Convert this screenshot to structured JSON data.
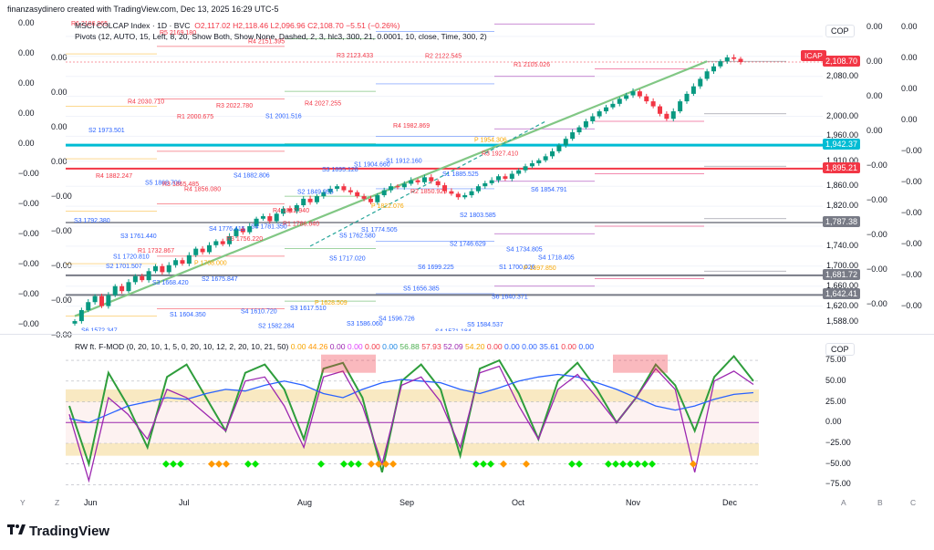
{
  "credit": "finanzasydinero created with TradingView.com, Dec 13, 2025 16:29 UTC-5",
  "legend": {
    "symbol": "MSCI COLCAP Index · 1D · BVC",
    "ohlc": "O2,117.02  H2,118.46  L2,096.96  C2,108.70  −5.51 (−0.26%)",
    "pivots": "Pivots (12, AUTO, 15, Left, 8, 20, Show Both, Show None, Dashed, 2, 3, hlc3, 300, 21, 0.0001, 10, close, Time, 300, 2)",
    "osc": "RW ft. F-MOD (0, 20, 10, 1, 5, 0, 20, 10, 12, 2, 20, 10, 21, 50)",
    "osc_values": [
      {
        "v": "0.00",
        "c": "#f7a600"
      },
      {
        "v": "44.26",
        "c": "#ff9800"
      },
      {
        "v": "0.00",
        "c": "#9c27b0"
      },
      {
        "v": "0.00",
        "c": "#e040fb"
      },
      {
        "v": "0.00",
        "c": "#f23645"
      },
      {
        "v": "0.00",
        "c": "#1e88e5"
      },
      {
        "v": "56.88",
        "c": "#4caf50"
      },
      {
        "v": "57.93",
        "c": "#f23645"
      },
      {
        "v": "52.09",
        "c": "#9c27b0"
      },
      {
        "v": "54.20",
        "c": "#f7a600"
      },
      {
        "v": "0.00",
        "c": "#f23645"
      },
      {
        "v": "0.00",
        "c": "#2962ff"
      },
      {
        "v": "0.00",
        "c": "#2962ff"
      },
      {
        "v": "35.61",
        "c": "#2962ff"
      },
      {
        "v": "0.00",
        "c": "#f23645"
      },
      {
        "v": "0.00",
        "c": "#2962ff"
      }
    ]
  },
  "currency": "COP",
  "currency2": "COP",
  "icap_label": "ICAP",
  "price_axis": [
    "2,080.00",
    "2,000.00",
    "1,960.00",
    "1,910.00",
    "1,860.00",
    "1,820.00",
    "1,740.00",
    "1,700.00",
    "1,660.00",
    "1,620.00",
    "1,588.00"
  ],
  "price_tags": [
    {
      "text": "2,108.70",
      "color": "#f23645"
    },
    {
      "text": "1,942.37",
      "color": "#00bcd4"
    },
    {
      "text": "1,895.21",
      "color": "#f23645"
    },
    {
      "text": "1,787.38",
      "color": "#787b86"
    },
    {
      "text": "1,681.72",
      "color": "#787b86"
    },
    {
      "text": "1,642.41",
      "color": "#787b86"
    }
  ],
  "zero_axis_left": [
    "0.00",
    "0.00",
    "0.00",
    "0.00",
    "0.00",
    "−0.00",
    "−0.00",
    "−0.00",
    "−0.00",
    "−0.00",
    "−0.00"
  ],
  "zero_axis_left2": [
    "0.00",
    "0.00",
    "0.00",
    "0.00",
    "−0.00",
    "−0.00",
    "−0.00",
    "−0.00",
    "−0.00"
  ],
  "zero_axis_right": [
    "0.00",
    "0.00",
    "0.00",
    "0.00",
    "−0.00",
    "−0.00",
    "−0.00",
    "−0.00",
    "−0.00",
    "−0.00"
  ],
  "zero_axis_right2": [
    "0.00",
    "0.00",
    "0.00",
    "0.00",
    "−0.00",
    "−0.00",
    "−0.00",
    "−0.00",
    "−0.00"
  ],
  "osc_axis": [
    "75.00",
    "50.00",
    "25.00",
    "0.00",
    "−25.00",
    "−50.00",
    "−75.00"
  ],
  "time_axis": [
    "Jun",
    "Jul",
    "Aug",
    "Sep",
    "Oct",
    "Nov",
    "Dec"
  ],
  "axis_letters": [
    "Y",
    "Z",
    "A",
    "B",
    "C"
  ],
  "brand": "TradingView",
  "pivot_labels": [
    {
      "t": "R6",
      "v": "2186.965"
    },
    {
      "t": "R5",
      "v": "2169.180"
    },
    {
      "t": "R4",
      "v": "2151.395"
    },
    {
      "t": "R3",
      "v": "2123.433"
    },
    {
      "t": "R2",
      "v": "2122.545"
    },
    {
      "t": "R1",
      "v": "2105.026"
    },
    {
      "t": "R4",
      "v": "2030.710"
    },
    {
      "t": "R3",
      "v": "2022.780"
    },
    {
      "t": "R4",
      "v": "2027.255"
    },
    {
      "t": "R4",
      "v": "1982.869"
    },
    {
      "t": "R3",
      "v": "1927.410"
    },
    {
      "t": "R4",
      "v": "1882.247"
    },
    {
      "t": "R4",
      "v": "1856.080"
    },
    {
      "t": "R4",
      "v": "1812.940"
    },
    {
      "t": "S1",
      "v": "1774.505"
    },
    {
      "t": "S2",
      "v": "1746.629"
    },
    {
      "t": "S4",
      "v": "1718.405"
    },
    {
      "t": "S3",
      "v": "1668.420"
    },
    {
      "t": "S4",
      "v": "1610.720"
    },
    {
      "t": "S5",
      "v": "1717.020"
    },
    {
      "t": "S6",
      "v": "1699.225"
    },
    {
      "t": "S4",
      "v": "1734.805"
    },
    {
      "t": "S3",
      "v": "1761.440"
    },
    {
      "t": "S4",
      "v": "1776.415"
    },
    {
      "t": "S2",
      "v": "1849.955"
    },
    {
      "t": "S1",
      "v": "1912.160"
    },
    {
      "t": "P",
      "v": "1954.306"
    },
    {
      "t": "S2",
      "v": "1973.501"
    },
    {
      "t": "R1",
      "v": "2000.675"
    },
    {
      "t": "S1",
      "v": "2001.516"
    },
    {
      "t": "S1",
      "v": "1904.660"
    },
    {
      "t": "S1",
      "v": "1885.525"
    },
    {
      "t": "S6",
      "v": "1854.791"
    },
    {
      "t": "S5",
      "v": "1868.706"
    },
    {
      "t": "S4",
      "v": "1882.806"
    },
    {
      "t": "S3",
      "v": "1895.128"
    },
    {
      "t": "R2",
      "v": "1850.925"
    },
    {
      "t": "S1",
      "v": "1700.026"
    },
    {
      "t": "S1",
      "v": "1720.810"
    },
    {
      "t": "S2",
      "v": "1675.847"
    },
    {
      "t": "S3",
      "v": "1617.510"
    },
    {
      "t": "S4",
      "v": "1596.726"
    },
    {
      "t": "S5",
      "v": "1584.537"
    },
    {
      "t": "S6",
      "v": "1572.347"
    },
    {
      "t": "S1",
      "v": "1604.350"
    },
    {
      "t": "S2",
      "v": "1582.284"
    },
    {
      "t": "S3",
      "v": "1586.060"
    },
    {
      "t": "S4",
      "v": "1571.184"
    },
    {
      "t": "P",
      "v": "1697.850"
    },
    {
      "t": "R1",
      "v": "1732.867"
    },
    {
      "t": "R3",
      "v": "1756.220"
    },
    {
      "t": "P",
      "v": "1628.509"
    },
    {
      "t": "S5",
      "v": "1656.385"
    },
    {
      "t": "S6",
      "v": "1640.371"
    },
    {
      "t": "S2",
      "v": "1701.507"
    },
    {
      "t": "P",
      "v": "1708.000"
    },
    {
      "t": "R1",
      "v": "1786.640"
    },
    {
      "t": "P",
      "v": "1822.076"
    },
    {
      "t": "S2",
      "v": "1803.585"
    },
    {
      "t": "S3",
      "v": "1792.380"
    },
    {
      "t": "R3",
      "v": "1865.485"
    },
    {
      "t": "S4",
      "v": "1781.350"
    },
    {
      "t": "S5",
      "v": "1762.580"
    }
  ],
  "chart_data": [
    {
      "type": "candlestick",
      "title": "MSCI COLCAP Index · 1D · BVC",
      "ylim": [
        1570,
        2200
      ],
      "x": [
        "Jun",
        "Jul",
        "Aug",
        "Sep",
        "Oct",
        "Nov",
        "Dec"
      ],
      "close_series": [
        1590,
        1612,
        1628,
        1640,
        1620,
        1642,
        1660,
        1650,
        1668,
        1680,
        1672,
        1690,
        1700,
        1688,
        1702,
        1712,
        1705,
        1722,
        1735,
        1728,
        1742,
        1750,
        1744,
        1760,
        1775,
        1768,
        1780,
        1795,
        1800,
        1790,
        1805,
        1815,
        1810,
        1822,
        1835,
        1828,
        1840,
        1848,
        1855,
        1860,
        1852,
        1848,
        1840,
        1835,
        1828,
        1842,
        1852,
        1860,
        1858,
        1865,
        1872,
        1868,
        1878,
        1870,
        1862,
        1850,
        1845,
        1838,
        1842,
        1850,
        1860,
        1866,
        1872,
        1880,
        1875,
        1885,
        1892,
        1900,
        1906,
        1912,
        1920,
        1930,
        1942,
        1955,
        1968,
        1978,
        1990,
        2000,
        2010,
        2018,
        2025,
        2035,
        2042,
        2050,
        2040,
        2030,
        2020,
        2005,
        1995,
        2010,
        2030,
        2045,
        2060,
        2075,
        2090,
        2100,
        2110,
        2118,
        2115,
        2108.7
      ],
      "last": 2108.7
    },
    {
      "type": "line",
      "title": "RW ft. F-MOD",
      "ylim": [
        -80,
        85
      ],
      "series": [
        {
          "name": "green",
          "color": "#2e9d3b",
          "values": [
            20,
            -50,
            60,
            20,
            -30,
            55,
            70,
            30,
            -10,
            60,
            70,
            40,
            -20,
            65,
            72,
            30,
            -60,
            50,
            70,
            40,
            -40,
            65,
            75,
            35,
            -20,
            50,
            72,
            40,
            0,
            30,
            70,
            45,
            -10,
            55,
            80,
            50
          ]
        },
        {
          "name": "blue",
          "color": "#2962ff",
          "values": [
            5,
            0,
            10,
            20,
            25,
            30,
            28,
            35,
            40,
            38,
            45,
            50,
            45,
            35,
            30,
            40,
            48,
            52,
            50,
            48,
            40,
            35,
            42,
            50,
            55,
            58,
            55,
            48,
            40,
            30,
            20,
            15,
            20,
            28,
            34,
            36
          ]
        },
        {
          "name": "purple",
          "color": "#9c27b0",
          "values": [
            10,
            -70,
            30,
            10,
            -20,
            40,
            30,
            10,
            -10,
            50,
            55,
            20,
            -30,
            55,
            62,
            20,
            -50,
            45,
            55,
            25,
            -30,
            60,
            68,
            20,
            -20,
            40,
            58,
            30,
            0,
            30,
            65,
            40,
            -60,
            50,
            62,
            46
          ]
        }
      ]
    }
  ]
}
